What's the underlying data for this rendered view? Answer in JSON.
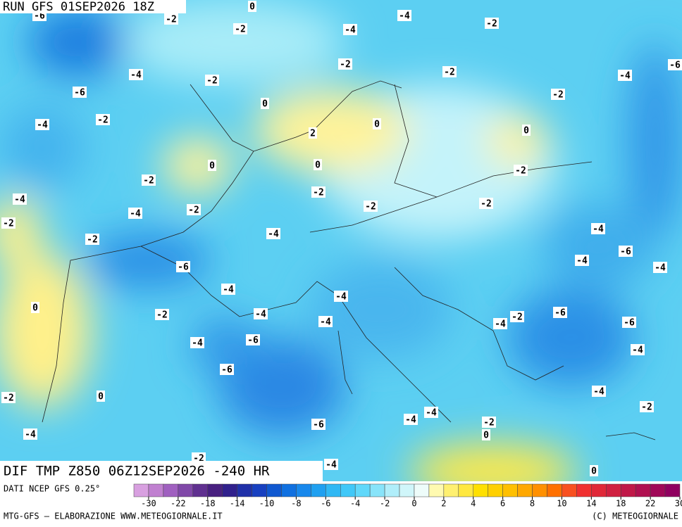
{
  "header": {
    "run": "RUN GFS 01SEP2026 18Z",
    "product": "DIF TMP Z850 06Z12SEP2026 -240 HR"
  },
  "footer": {
    "source": "DATI NCEP GFS 0.25°",
    "credit": "MTG-GFS — ELABORAZIONE WWW.METEOGIORNALE.IT",
    "copyright": "(C) METEOGIORNALE"
  },
  "colorbar": {
    "colors": [
      "#d8a0e0",
      "#c080d0",
      "#a060c0",
      "#8048a8",
      "#603090",
      "#482080",
      "#30208c",
      "#2030a8",
      "#1840c0",
      "#1058d0",
      "#1070e0",
      "#1888ec",
      "#20a0f0",
      "#30b8f4",
      "#40c8f8",
      "#60d8fa",
      "#88e4fa",
      "#b0eefa",
      "#d0f6fa",
      "#eefcfa",
      "#fffab0",
      "#fff070",
      "#ffe840",
      "#ffe000",
      "#ffd000",
      "#ffc000",
      "#ffa800",
      "#ff9000",
      "#ff7000",
      "#f85020",
      "#f03030",
      "#e02838",
      "#d02040",
      "#c01848",
      "#b01050",
      "#a00858",
      "#900060"
    ],
    "ticks": [
      -30,
      -22,
      -18,
      -14,
      -10,
      -8,
      -6,
      -4,
      -2,
      0,
      2,
      4,
      6,
      8,
      10,
      14,
      18,
      22,
      30
    ]
  },
  "contour_labels": [
    -6,
    -2,
    -2,
    0,
    -4,
    -4,
    -2,
    -2,
    -4,
    -2,
    -6,
    -2,
    -4,
    -6,
    0,
    -2,
    -2,
    -4,
    0,
    2,
    0,
    0,
    0,
    -2,
    -2,
    -2,
    -4,
    -2,
    -2,
    -2,
    -4,
    -2,
    -2,
    -4,
    -4,
    -6,
    -6,
    -4,
    -4,
    -4,
    -4,
    0,
    -2,
    -4,
    -6,
    -2,
    -4,
    -4,
    -6,
    -6,
    -4,
    -4,
    -6,
    -4,
    -2,
    0,
    -2,
    -4,
    -4,
    -6,
    -2,
    -4,
    0,
    -2,
    -4,
    0
  ]
}
